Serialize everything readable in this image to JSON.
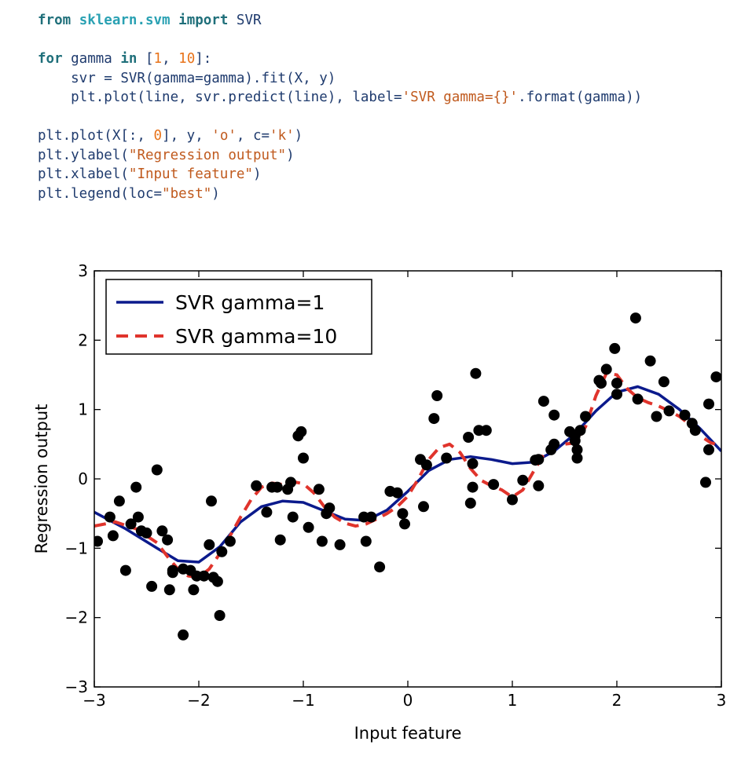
{
  "code": {
    "lines": [
      [
        {
          "t": "from",
          "c": "kw"
        },
        {
          "t": " "
        },
        {
          "t": "sklearn.svm",
          "c": "mod"
        },
        {
          "t": " "
        },
        {
          "t": "import",
          "c": "kw"
        },
        {
          "t": " SVR"
        }
      ],
      [],
      [
        {
          "t": "for",
          "c": "kw"
        },
        {
          "t": " gamma "
        },
        {
          "t": "in",
          "c": "kw"
        },
        {
          "t": " ["
        },
        {
          "t": "1",
          "c": "num"
        },
        {
          "t": ", "
        },
        {
          "t": "10",
          "c": "num"
        },
        {
          "t": "]:"
        }
      ],
      [
        {
          "t": "    svr = SVR(gamma=gamma).fit(X, y)"
        }
      ],
      [
        {
          "t": "    plt.plot(line, svr.predict(line), label="
        },
        {
          "t": "'SVR gamma={}'",
          "c": "str"
        },
        {
          "t": ".format(gamma))"
        }
      ],
      [],
      [
        {
          "t": "plt.plot(X[:, "
        },
        {
          "t": "0",
          "c": "num"
        },
        {
          "t": "], y, "
        },
        {
          "t": "'o'",
          "c": "str"
        },
        {
          "t": ", c="
        },
        {
          "t": "'k'",
          "c": "str"
        },
        {
          "t": ")"
        }
      ],
      [
        {
          "t": "plt.ylabel("
        },
        {
          "t": "\"Regression output\"",
          "c": "str"
        },
        {
          "t": ")"
        }
      ],
      [
        {
          "t": "plt.xlabel("
        },
        {
          "t": "\"Input feature\"",
          "c": "str"
        },
        {
          "t": ")"
        }
      ],
      [
        {
          "t": "plt.legend(loc="
        },
        {
          "t": "\"best\"",
          "c": "str"
        },
        {
          "t": ")"
        }
      ]
    ]
  },
  "colors": {
    "code_text": "#1f3b6e",
    "keyword": "#1f6f7a",
    "module": "#2aa1b3",
    "number": "#e8731a",
    "string": "#c05a1e",
    "series_gamma_1": "#0b1a8c",
    "series_gamma_10": "#e0342c",
    "points": "#000000"
  },
  "chart_data": {
    "type": "line",
    "title": "",
    "xlabel": "Input feature",
    "ylabel": "Regression output",
    "xlim": [
      -3,
      3
    ],
    "ylim": [
      -3,
      3
    ],
    "xticks": [
      -3,
      -2,
      -1,
      0,
      1,
      2,
      3
    ],
    "xtick_labels": [
      "−3",
      "−2",
      "−1",
      "0",
      "1",
      "2",
      "3"
    ],
    "yticks": [
      -3,
      -2,
      -1,
      0,
      1,
      2,
      3
    ],
    "ytick_labels": [
      "−3",
      "−2",
      "−1",
      "0",
      "1",
      "2",
      "3"
    ],
    "grid": false,
    "legend": {
      "placement": "top-left",
      "entries": [
        "SVR gamma=1",
        "SVR gamma=10"
      ]
    },
    "series": [
      {
        "name": "SVR gamma=1",
        "style": "solid",
        "x": [
          -3.0,
          -2.7,
          -2.4,
          -2.2,
          -2.0,
          -1.8,
          -1.6,
          -1.4,
          -1.2,
          -1.0,
          -0.8,
          -0.6,
          -0.4,
          -0.2,
          0.0,
          0.2,
          0.4,
          0.6,
          0.8,
          1.0,
          1.2,
          1.4,
          1.6,
          1.8,
          2.0,
          2.2,
          2.4,
          2.6,
          2.8,
          3.0
        ],
        "y": [
          -0.48,
          -0.72,
          -1.0,
          -1.18,
          -1.2,
          -0.98,
          -0.62,
          -0.4,
          -0.32,
          -0.34,
          -0.46,
          -0.58,
          -0.6,
          -0.45,
          -0.18,
          0.12,
          0.28,
          0.32,
          0.28,
          0.22,
          0.24,
          0.4,
          0.65,
          0.98,
          1.25,
          1.33,
          1.22,
          1.0,
          0.72,
          0.4
        ]
      },
      {
        "name": "SVR gamma=10",
        "style": "dashed",
        "x": [
          -3.0,
          -2.8,
          -2.6,
          -2.4,
          -2.3,
          -2.2,
          -2.1,
          -2.0,
          -1.9,
          -1.8,
          -1.7,
          -1.6,
          -1.5,
          -1.4,
          -1.3,
          -1.2,
          -1.1,
          -1.0,
          -0.9,
          -0.8,
          -0.7,
          -0.6,
          -0.5,
          -0.4,
          -0.3,
          -0.2,
          -0.1,
          0.0,
          0.1,
          0.2,
          0.3,
          0.4,
          0.5,
          0.6,
          0.7,
          0.8,
          0.9,
          1.0,
          1.1,
          1.2,
          1.3,
          1.4,
          1.5,
          1.6,
          1.7,
          1.8,
          1.9,
          2.0,
          2.1,
          2.2,
          2.3,
          2.4,
          2.5,
          2.6,
          2.7,
          2.8,
          2.9,
          3.0
        ],
        "y": [
          -0.68,
          -0.62,
          -0.72,
          -0.92,
          -1.12,
          -1.3,
          -1.4,
          -1.42,
          -1.3,
          -1.08,
          -0.82,
          -0.55,
          -0.3,
          -0.12,
          -0.06,
          -0.08,
          -0.04,
          -0.07,
          -0.2,
          -0.4,
          -0.55,
          -0.64,
          -0.68,
          -0.65,
          -0.58,
          -0.5,
          -0.4,
          -0.25,
          0.0,
          0.28,
          0.45,
          0.5,
          0.38,
          0.15,
          -0.02,
          -0.1,
          -0.16,
          -0.26,
          -0.16,
          0.1,
          0.35,
          0.48,
          0.5,
          0.52,
          0.75,
          1.2,
          1.52,
          1.5,
          1.3,
          1.17,
          1.1,
          1.05,
          0.98,
          0.9,
          0.78,
          0.62,
          0.52,
          0.48
        ]
      }
    ],
    "points": {
      "name": "data points",
      "x": [
        -2.97,
        -2.85,
        -2.82,
        -2.76,
        -2.7,
        -2.65,
        -2.6,
        -2.58,
        -2.55,
        -2.5,
        -2.45,
        -2.4,
        -2.35,
        -2.3,
        -2.28,
        -2.25,
        -2.25,
        -2.15,
        -2.15,
        -2.08,
        -2.05,
        -2.02,
        -1.95,
        -1.9,
        -1.88,
        -1.86,
        -1.82,
        -1.8,
        -1.78,
        -1.7,
        -1.45,
        -1.35,
        -1.3,
        -1.25,
        -1.22,
        -1.15,
        -1.12,
        -1.1,
        -1.05,
        -1.02,
        -1.0,
        -0.95,
        -0.85,
        -0.82,
        -0.78,
        -0.75,
        -0.65,
        -0.42,
        -0.4,
        -0.35,
        -0.27,
        -0.17,
        -0.1,
        -0.05,
        -0.03,
        0.12,
        0.15,
        0.18,
        0.25,
        0.28,
        0.37,
        0.58,
        0.6,
        0.62,
        0.62,
        0.65,
        0.68,
        0.75,
        0.82,
        1.0,
        1.1,
        1.22,
        1.25,
        1.25,
        1.3,
        1.37,
        1.4,
        1.4,
        1.55,
        1.6,
        1.6,
        1.62,
        1.62,
        1.65,
        1.7,
        1.83,
        1.85,
        1.9,
        1.98,
        2.0,
        2.0,
        2.18,
        2.2,
        2.32,
        2.38,
        2.45,
        2.5,
        2.65,
        2.72,
        2.75,
        2.85,
        2.88,
        2.88,
        2.95
      ],
      "y": [
        -0.9,
        -0.55,
        -0.82,
        -0.32,
        -1.32,
        -0.65,
        -0.12,
        -0.55,
        -0.75,
        -0.78,
        -1.55,
        0.13,
        -0.75,
        -0.88,
        -1.6,
        -1.32,
        -1.35,
        -1.3,
        -2.25,
        -1.32,
        -1.6,
        -1.4,
        -1.4,
        -0.95,
        -0.32,
        -1.42,
        -1.48,
        -1.97,
        -1.05,
        -0.9,
        -0.1,
        -0.48,
        -0.12,
        -0.12,
        -0.88,
        -0.15,
        -0.05,
        -0.55,
        0.62,
        0.68,
        0.3,
        -0.7,
        -0.15,
        -0.9,
        -0.5,
        -0.42,
        -0.95,
        -0.55,
        -0.9,
        -0.55,
        -1.27,
        -0.18,
        -0.2,
        -0.5,
        -0.65,
        0.28,
        -0.4,
        0.2,
        0.87,
        1.2,
        0.3,
        0.6,
        -0.35,
        -0.12,
        0.22,
        1.52,
        0.7,
        0.7,
        -0.08,
        -0.3,
        -0.02,
        0.27,
        -0.1,
        0.28,
        1.12,
        0.42,
        0.5,
        0.92,
        0.68,
        0.55,
        0.62,
        0.42,
        0.3,
        0.7,
        0.9,
        1.42,
        1.38,
        1.58,
        1.88,
        1.22,
        1.38,
        2.32,
        1.15,
        1.7,
        0.9,
        1.4,
        0.98,
        0.92,
        0.8,
        0.7,
        -0.05,
        0.42,
        1.08,
        1.47
      ]
    }
  }
}
